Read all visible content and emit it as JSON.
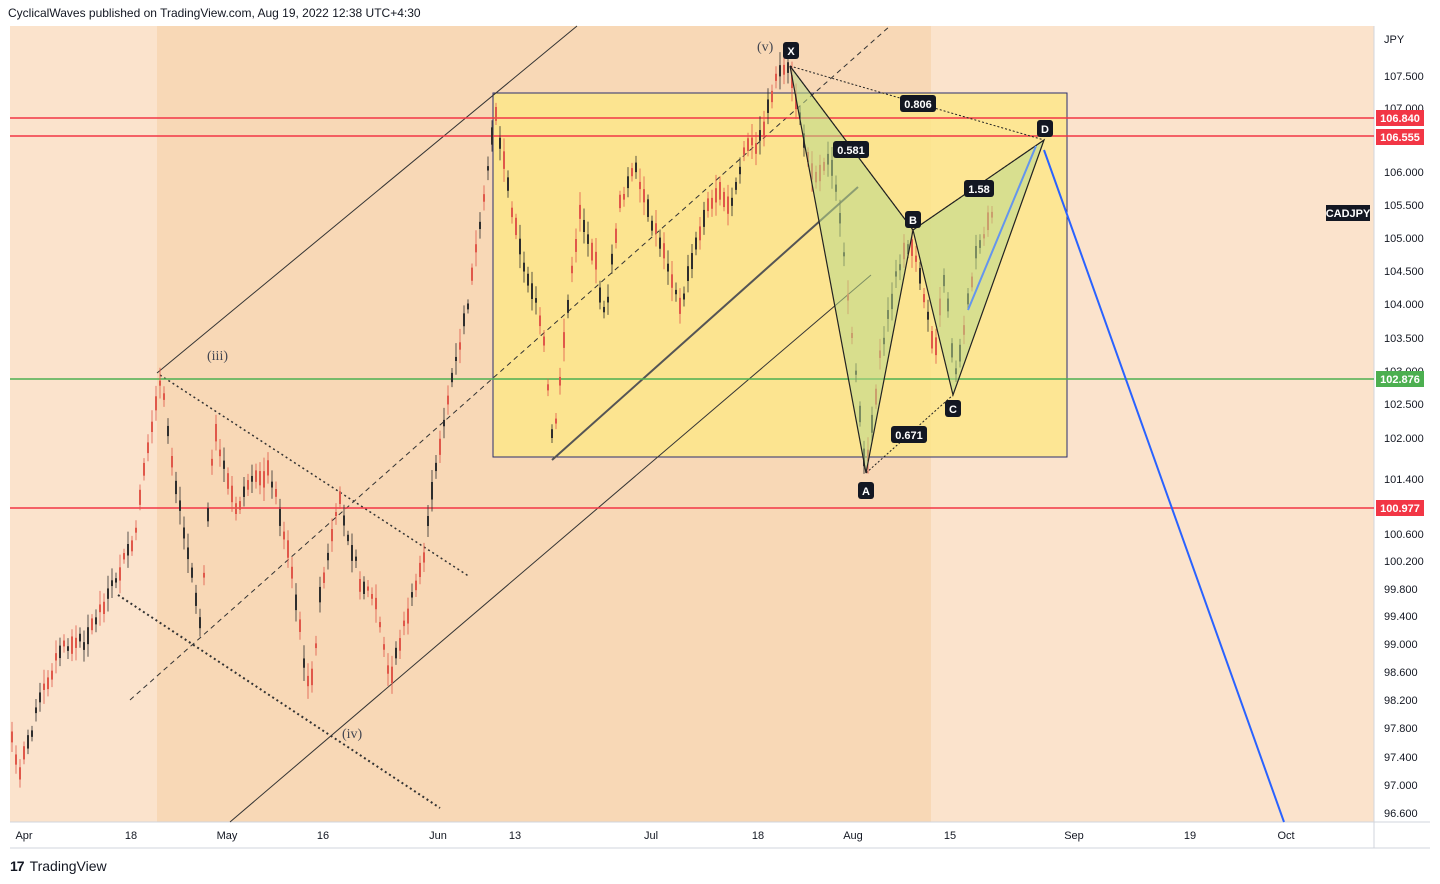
{
  "header": {
    "publisher_line": "CyclicalWaves published on TradingView.com, Aug 19, 2022 12:38 UTC+4:30"
  },
  "footer": {
    "brand": "TradingView",
    "logo": "17"
  },
  "chart_data": {
    "type": "candlestick",
    "symbol": "CADJPY",
    "currency": "JPY",
    "y_ticks": [
      "107.500",
      "107.000",
      "106.000",
      "105.500",
      "105.000",
      "104.500",
      "104.000",
      "103.500",
      "103.000",
      "102.500",
      "102.000",
      "101.400",
      "100.600",
      "100.200",
      "99.800",
      "99.400",
      "99.000",
      "98.600",
      "98.200",
      "97.800",
      "97.400",
      "97.000",
      "96.600"
    ],
    "x_ticks": [
      "Apr",
      "18",
      "May",
      "16",
      "Jun",
      "13",
      "Jul",
      "18",
      "Aug",
      "15",
      "Sep",
      "19",
      "Oct"
    ],
    "horizontal_levels": [
      {
        "label": "106.840",
        "color": "#f23645"
      },
      {
        "label": "106.555",
        "color": "#f23645"
      },
      {
        "label": "102.876",
        "color": "#4caf50"
      },
      {
        "label": "100.977",
        "color": "#f23645"
      }
    ],
    "wave_labels": [
      "(iii)",
      "(iv)",
      "(v)"
    ],
    "pattern_points": [
      "X",
      "A",
      "B",
      "C",
      "D"
    ],
    "ratios": [
      "0.806",
      "0.581",
      "1.58",
      "0.671"
    ],
    "colors": {
      "background": "#fbe3cc",
      "band": "#f8d7b5",
      "box": "#fde68a",
      "harmonic": "#c8e0a0",
      "projection": "#2962ff"
    }
  }
}
